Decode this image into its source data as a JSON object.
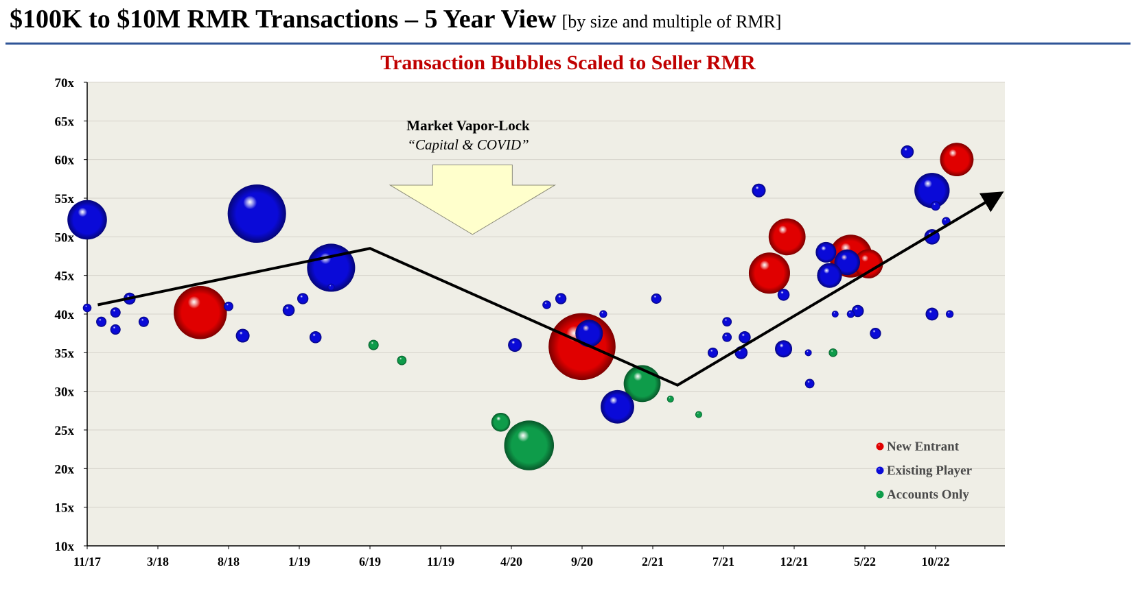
{
  "header": {
    "title": "$100K to $10M RMR Transactions – 5 Year View",
    "subtitle": "[by size and multiple of RMR]"
  },
  "annotation": {
    "title": "Market Vapor-Lock",
    "subtitle": "“Capital & COVID”"
  },
  "colors": {
    "header_rule": "#2f5597",
    "chart_title": "#c00000",
    "plot_bg": "#efeee6",
    "arrow_fill": "#ffffcc",
    "new_entrant": "#e00000",
    "existing_player": "#0a0ad8",
    "accounts_only": "#0e9c4a"
  },
  "chart_data": {
    "type": "scatter",
    "title": "Transaction Bubbles Scaled to Seller RMR",
    "xlabel": "",
    "ylabel": "",
    "x_ticks": [
      "11/17",
      "3/18",
      "8/18",
      "1/19",
      "6/19",
      "11/19",
      "4/20",
      "9/20",
      "2/21",
      "7/21",
      "12/21",
      "5/22",
      "10/22"
    ],
    "ylim": [
      10,
      70
    ],
    "y_ticks": [
      10,
      15,
      20,
      25,
      30,
      35,
      40,
      45,
      50,
      55,
      60,
      65,
      70
    ],
    "y_tick_suffix": "x",
    "grid": true,
    "legend": "bottom-right",
    "series": [
      {
        "name": "New Entrant",
        "color": "#e00000",
        "points": [
          {
            "x": 1.6,
            "y": 40.2,
            "size": 62
          },
          {
            "x": 7.0,
            "y": 35.8,
            "size": 78
          },
          {
            "x": 9.65,
            "y": 45.3,
            "size": 48
          },
          {
            "x": 9.9,
            "y": 50.0,
            "size": 43
          },
          {
            "x": 10.8,
            "y": 47.5,
            "size": 50
          },
          {
            "x": 11.05,
            "y": 46.5,
            "size": 34
          },
          {
            "x": 12.3,
            "y": 60.0,
            "size": 39
          }
        ]
      },
      {
        "name": "Existing Player",
        "color": "#0a0ad8",
        "points": [
          {
            "x": 0.0,
            "y": 52.2,
            "size": 46
          },
          {
            "x": 0.0,
            "y": 40.8,
            "size": 10
          },
          {
            "x": 0.2,
            "y": 39.0,
            "size": 12
          },
          {
            "x": 0.4,
            "y": 40.2,
            "size": 12
          },
          {
            "x": 0.4,
            "y": 38.0,
            "size": 12
          },
          {
            "x": 0.6,
            "y": 42.0,
            "size": 14
          },
          {
            "x": 0.8,
            "y": 39.0,
            "size": 12
          },
          {
            "x": 2.0,
            "y": 41.0,
            "size": 11
          },
          {
            "x": 2.2,
            "y": 37.2,
            "size": 16
          },
          {
            "x": 2.4,
            "y": 53.0,
            "size": 68
          },
          {
            "x": 2.85,
            "y": 40.5,
            "size": 14
          },
          {
            "x": 3.05,
            "y": 42.0,
            "size": 13
          },
          {
            "x": 3.23,
            "y": 37.0,
            "size": 14
          },
          {
            "x": 3.45,
            "y": 46.0,
            "size": 56
          },
          {
            "x": 3.45,
            "y": 43.5,
            "size": 8
          },
          {
            "x": 6.05,
            "y": 36.0,
            "size": 16
          },
          {
            "x": 6.5,
            "y": 41.2,
            "size": 10
          },
          {
            "x": 6.7,
            "y": 42.0,
            "size": 13
          },
          {
            "x": 7.1,
            "y": 37.5,
            "size": 32
          },
          {
            "x": 7.3,
            "y": 40.0,
            "size": 9
          },
          {
            "x": 7.5,
            "y": 28.0,
            "size": 39
          },
          {
            "x": 8.05,
            "y": 42.0,
            "size": 12
          },
          {
            "x": 8.85,
            "y": 35.0,
            "size": 12
          },
          {
            "x": 9.05,
            "y": 39.0,
            "size": 11
          },
          {
            "x": 9.05,
            "y": 37.0,
            "size": 11
          },
          {
            "x": 9.25,
            "y": 35.0,
            "size": 15
          },
          {
            "x": 9.3,
            "y": 37.0,
            "size": 14
          },
          {
            "x": 9.5,
            "y": 56.0,
            "size": 16
          },
          {
            "x": 9.85,
            "y": 42.5,
            "size": 14
          },
          {
            "x": 9.85,
            "y": 35.5,
            "size": 20
          },
          {
            "x": 10.2,
            "y": 35.0,
            "size": 8
          },
          {
            "x": 10.22,
            "y": 31.0,
            "size": 11
          },
          {
            "x": 10.45,
            "y": 48.0,
            "size": 24
          },
          {
            "x": 10.5,
            "y": 45.0,
            "size": 29
          },
          {
            "x": 10.58,
            "y": 40.0,
            "size": 8
          },
          {
            "x": 10.8,
            "y": 40.0,
            "size": 9
          },
          {
            "x": 10.9,
            "y": 40.4,
            "size": 14
          },
          {
            "x": 10.75,
            "y": 46.7,
            "size": 30
          },
          {
            "x": 11.15,
            "y": 37.5,
            "size": 13
          },
          {
            "x": 11.6,
            "y": 61.0,
            "size": 15
          },
          {
            "x": 11.95,
            "y": 56.0,
            "size": 41
          },
          {
            "x": 12.0,
            "y": 54.0,
            "size": 11
          },
          {
            "x": 11.95,
            "y": 50.0,
            "size": 18
          },
          {
            "x": 12.15,
            "y": 52.0,
            "size": 10
          },
          {
            "x": 11.95,
            "y": 40.0,
            "size": 15
          },
          {
            "x": 12.2,
            "y": 40.0,
            "size": 9
          }
        ]
      },
      {
        "name": "Accounts Only",
        "color": "#0e9c4a",
        "points": [
          {
            "x": 4.05,
            "y": 36.0,
            "size": 12
          },
          {
            "x": 4.45,
            "y": 34.0,
            "size": 11
          },
          {
            "x": 5.85,
            "y": 26.0,
            "size": 22
          },
          {
            "x": 6.25,
            "y": 23.0,
            "size": 58
          },
          {
            "x": 7.85,
            "y": 31.0,
            "size": 43
          },
          {
            "x": 8.25,
            "y": 29.0,
            "size": 8
          },
          {
            "x": 8.65,
            "y": 27.0,
            "size": 8
          },
          {
            "x": 10.55,
            "y": 35.0,
            "size": 10
          }
        ]
      }
    ],
    "trend_line": [
      {
        "x": 0.15,
        "y": 41.2
      },
      {
        "x": 4.0,
        "y": 48.5
      },
      {
        "x": 8.35,
        "y": 30.8
      },
      {
        "x": 12.9,
        "y": 55.5
      }
    ],
    "arrow_annotation": {
      "x": 5.45,
      "y_top": 59.3,
      "y_bottom": 50.3
    }
  }
}
